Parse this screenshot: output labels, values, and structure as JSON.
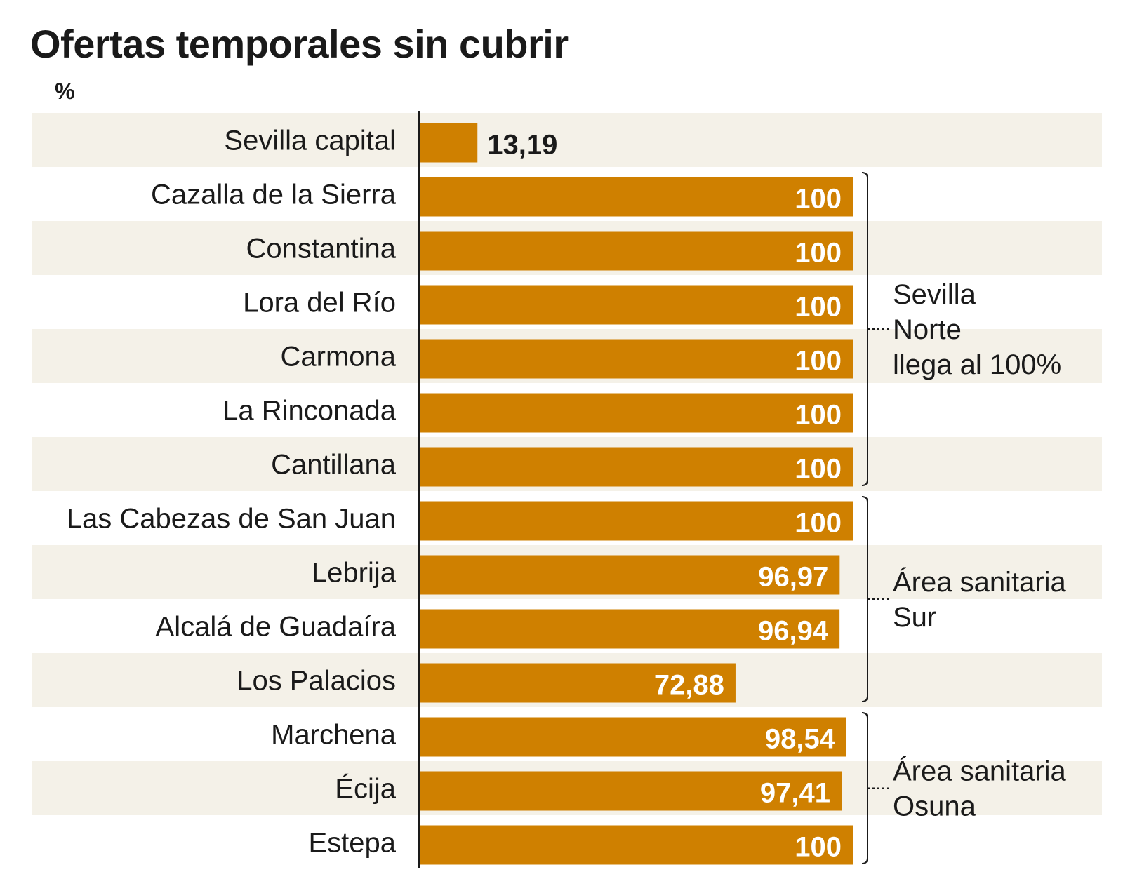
{
  "chart_data": {
    "type": "bar",
    "orientation": "horizontal",
    "title": "Ofertas temporales sin cubrir",
    "unit": "%",
    "xlim": [
      0,
      100
    ],
    "grid": false,
    "categories": [
      "Sevilla capital",
      "Cazalla de la Sierra",
      "Constantina",
      "Lora del Río",
      "Carmona",
      "La Rinconada",
      "Cantillana",
      "Las Cabezas de San Juan",
      "Lebrija",
      "Alcalá de Guadaíra",
      "Los Palacios",
      "Marchena",
      "Écija",
      "Estepa"
    ],
    "values": [
      13.19,
      100,
      100,
      100,
      100,
      100,
      100,
      100,
      96.97,
      96.94,
      72.88,
      98.54,
      97.41,
      100
    ],
    "value_labels": [
      "13,19",
      "100",
      "100",
      "100",
      "100",
      "100",
      "100",
      "100",
      "96,97",
      "96,94",
      "72,88",
      "98,54",
      "97,41",
      "100"
    ],
    "groups": [
      {
        "label_lines": [
          "Sevilla",
          "Norte",
          "llega al 100%"
        ],
        "from": 1,
        "to": 6
      },
      {
        "label_lines": [
          "Área sanitaria",
          "Sur"
        ],
        "from": 7,
        "to": 10
      },
      {
        "label_lines": [
          "Área sanitaria",
          "Osuna"
        ],
        "from": 11,
        "to": 13
      }
    ],
    "colors": {
      "bar": "#cf8000",
      "band": "#f4f1e8",
      "axis": "#1a1a1a",
      "label_inside": "#ffffff",
      "label_outside": "#1a1a1a"
    }
  }
}
